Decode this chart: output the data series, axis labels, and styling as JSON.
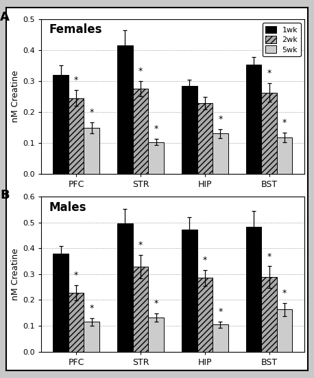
{
  "panel_A": {
    "title": "Females",
    "panel_label": "A",
    "ylim": [
      0.0,
      0.5
    ],
    "yticks": [
      0.0,
      0.1,
      0.2,
      0.3,
      0.4,
      0.5
    ],
    "categories": [
      "PFC",
      "STR",
      "HIP",
      "BST"
    ],
    "values_1wk": [
      0.32,
      0.415,
      0.283,
      0.353
    ],
    "values_2wk": [
      0.245,
      0.275,
      0.228,
      0.262
    ],
    "values_5wk": [
      0.148,
      0.103,
      0.13,
      0.118
    ],
    "errors_1wk": [
      0.03,
      0.048,
      0.02,
      0.025
    ],
    "errors_2wk": [
      0.025,
      0.025,
      0.02,
      0.03
    ],
    "errors_5wk": [
      0.018,
      0.01,
      0.015,
      0.015
    ],
    "sig_2wk": [
      true,
      true,
      false,
      true
    ],
    "sig_5wk": [
      true,
      true,
      true,
      true
    ]
  },
  "panel_B": {
    "title": "Males",
    "panel_label": "B",
    "ylim": [
      0.0,
      0.6
    ],
    "yticks": [
      0.0,
      0.1,
      0.2,
      0.3,
      0.4,
      0.5,
      0.6
    ],
    "categories": [
      "PFC",
      "STR",
      "HIP",
      "BST"
    ],
    "values_1wk": [
      0.378,
      0.495,
      0.473,
      0.483
    ],
    "values_2wk": [
      0.228,
      0.328,
      0.285,
      0.288
    ],
    "values_5wk": [
      0.115,
      0.132,
      0.105,
      0.163
    ],
    "errors_1wk": [
      0.03,
      0.058,
      0.048,
      0.06
    ],
    "errors_2wk": [
      0.03,
      0.045,
      0.03,
      0.042
    ],
    "errors_5wk": [
      0.015,
      0.015,
      0.012,
      0.025
    ],
    "sig_2wk": [
      true,
      true,
      true,
      true
    ],
    "sig_5wk": [
      true,
      true,
      true,
      true
    ]
  },
  "colors": {
    "1wk": "#000000",
    "2wk": "#aaaaaa",
    "5wk": "#cccccc"
  },
  "hatch": {
    "1wk": "",
    "2wk": "////",
    "5wk": ""
  },
  "ylabel": "nM Creatine",
  "legend_labels": [
    "1wk",
    "2wk",
    "5wk"
  ],
  "bar_width": 0.24,
  "figure_bg": "#e0e0e0"
}
